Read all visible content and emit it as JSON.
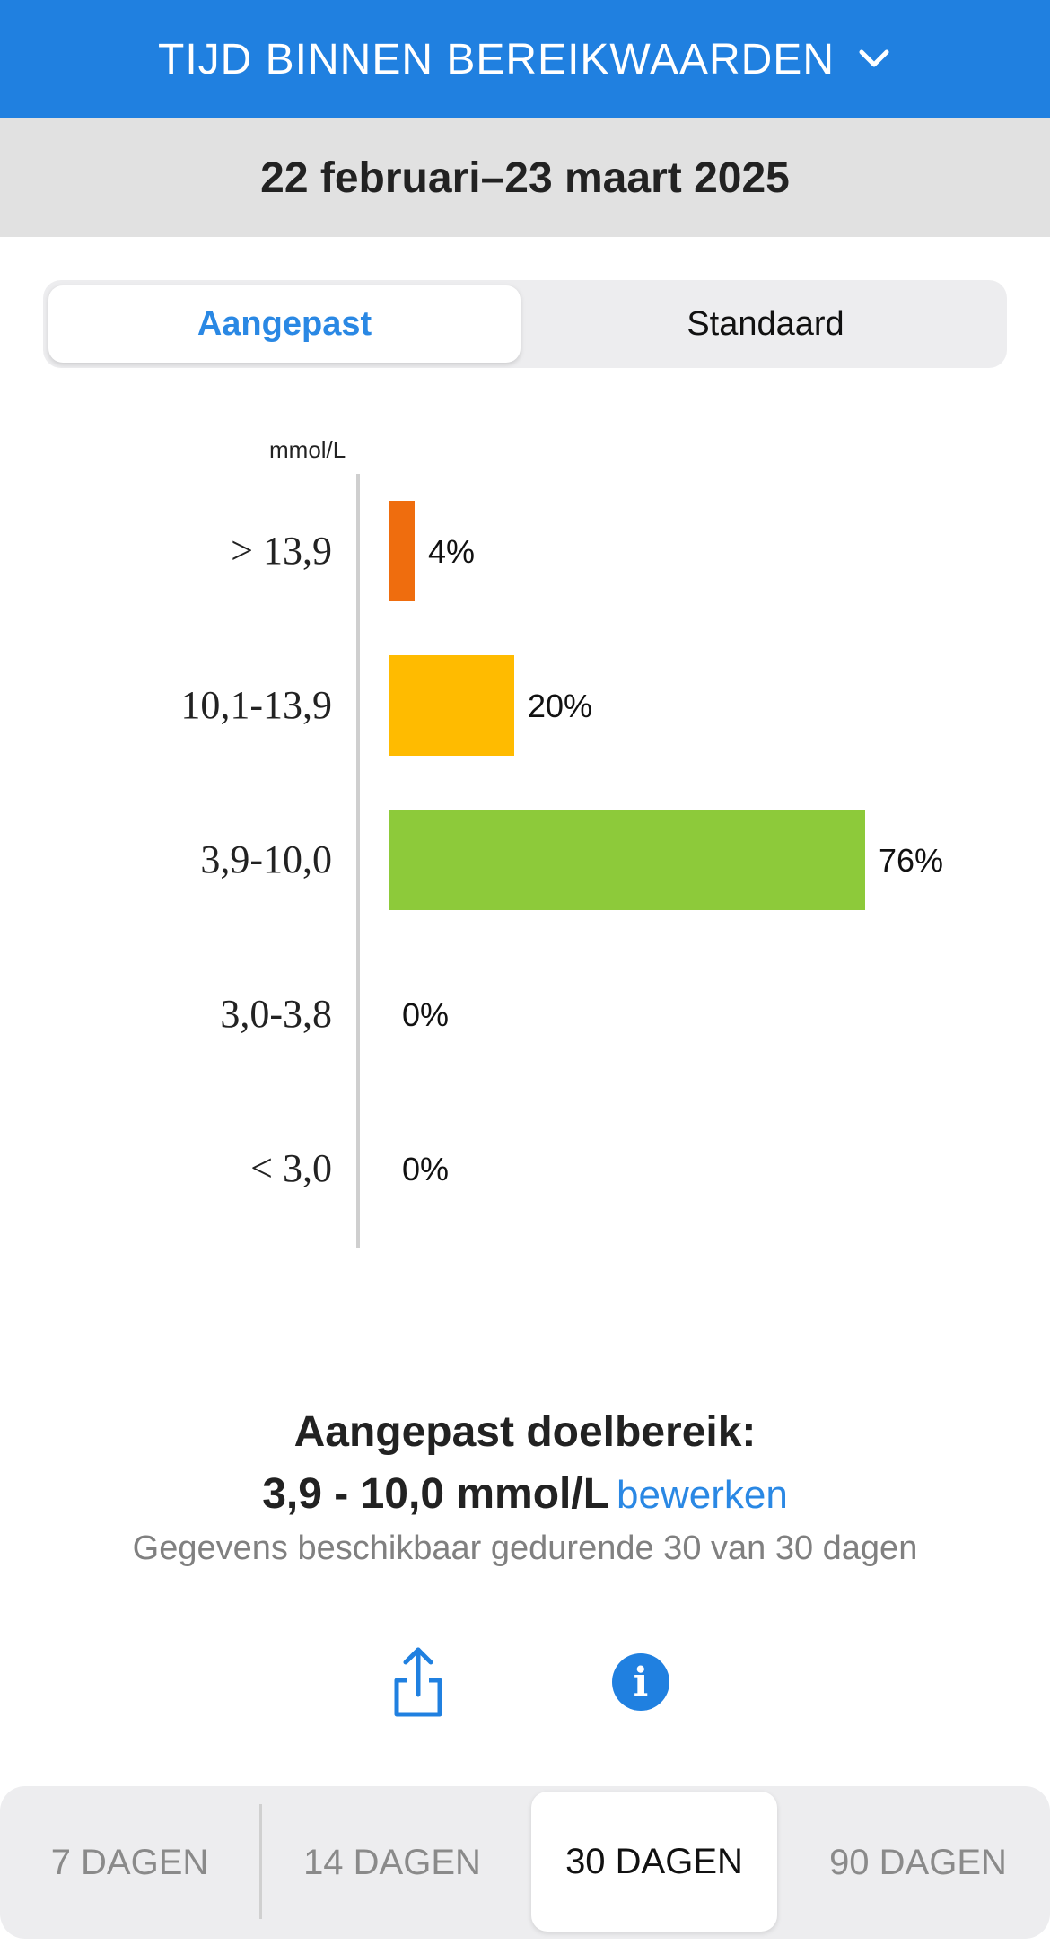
{
  "header": {
    "title": "TIJD BINNEN BEREIKWAARDEN"
  },
  "date_range": "22 februari–23 maart 2025",
  "segmented": {
    "options": [
      "Aangepast",
      "Standaard"
    ],
    "selected": "Aangepast"
  },
  "chart_data": {
    "type": "bar",
    "orientation": "horizontal",
    "unit_label": "mmol/L",
    "categories": [
      "> 13,9",
      "10,1-13,9",
      "3,9-10,0",
      "3,0-3,8",
      "< 3,0"
    ],
    "values": [
      4,
      20,
      76,
      0,
      0
    ],
    "value_labels": [
      "4%",
      "20%",
      "76%",
      "0%",
      "0%"
    ],
    "colors": [
      "#ef6d0e",
      "#ffbb00",
      "#8dca3a",
      "#c0392b",
      "#8e1b1b"
    ]
  },
  "target": {
    "heading": "Aangepast doelbereik:",
    "range": "3,9 - 10,0 mmol/L",
    "edit_label": "bewerken",
    "availability": "Gegevens beschikbaar gedurende 30 van 30 dagen"
  },
  "actions": {
    "share_icon": "share-icon",
    "info_icon": "info-icon"
  },
  "period_tabs": {
    "items": [
      "7 DAGEN",
      "14 DAGEN",
      "30 DAGEN",
      "90 DAGEN"
    ],
    "selected": "30 DAGEN"
  },
  "colors": {
    "accent": "#2080e0",
    "link": "#2a88e4"
  }
}
